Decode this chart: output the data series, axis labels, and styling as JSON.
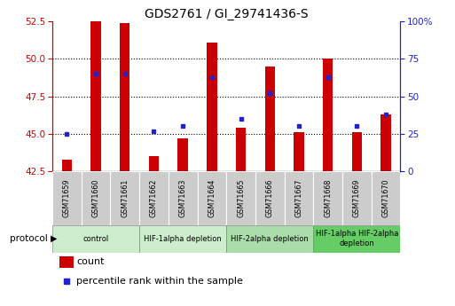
{
  "title": "GDS2761 / GI_29741436-S",
  "samples": [
    "GSM71659",
    "GSM71660",
    "GSM71661",
    "GSM71662",
    "GSM71663",
    "GSM71664",
    "GSM71665",
    "GSM71666",
    "GSM71667",
    "GSM71668",
    "GSM71669",
    "GSM71670"
  ],
  "counts": [
    43.3,
    52.5,
    52.4,
    43.5,
    44.7,
    51.1,
    45.4,
    49.5,
    45.1,
    50.0,
    45.1,
    46.3
  ],
  "percentile_ranks": [
    25,
    65,
    65,
    27,
    30,
    63,
    35,
    52,
    30,
    63,
    30,
    38
  ],
  "y_min": 42.5,
  "y_max": 52.5,
  "y_ticks": [
    42.5,
    45.0,
    47.5,
    50.0,
    52.5
  ],
  "y_right_ticks": [
    0,
    25,
    50,
    75,
    100
  ],
  "bar_color": "#cc0000",
  "dot_color": "#2222cc",
  "bar_bottom": 42.5,
  "protocol_groups": [
    {
      "label": "control",
      "start": 0,
      "end": 3,
      "color": "#cceecc"
    },
    {
      "label": "HIF-1alpha depletion",
      "start": 3,
      "end": 6,
      "color": "#cceecc"
    },
    {
      "label": "HIF-2alpha depletion",
      "start": 6,
      "end": 9,
      "color": "#aaddaa"
    },
    {
      "label": "HIF-1alpha HIF-2alpha\ndepletion",
      "start": 9,
      "end": 12,
      "color": "#66cc66"
    }
  ],
  "dotted_line_color": "#000000",
  "axis_left_color": "#cc0000",
  "axis_right_color": "#2222cc",
  "bar_width": 0.35,
  "legend_bar_label": "count",
  "legend_dot_label": "percentile rank within the sample"
}
